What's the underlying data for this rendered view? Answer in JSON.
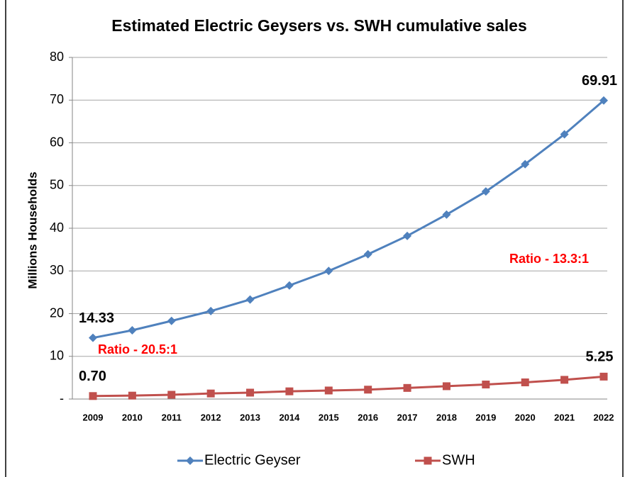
{
  "chart_data": {
    "type": "line",
    "title": "Estimated Electric Geysers vs. SWH cumulative sales",
    "y_label": "Millions Households",
    "categories": [
      "2009",
      "2010",
      "2011",
      "2012",
      "2013",
      "2014",
      "2015",
      "2016",
      "2017",
      "2018",
      "2019",
      "2020",
      "2021",
      "2022"
    ],
    "series": [
      {
        "name": "Electric Geyser",
        "color": "#4f81bd",
        "marker": "diamond",
        "values": [
          14.33,
          16.1,
          18.3,
          20.6,
          23.3,
          26.6,
          30.0,
          33.9,
          38.2,
          43.2,
          48.6,
          55.0,
          62.0,
          69.91
        ],
        "value_labels": [
          "14.33",
          null,
          null,
          null,
          null,
          null,
          null,
          null,
          null,
          null,
          null,
          null,
          null,
          "69.91"
        ]
      },
      {
        "name": "SWH",
        "color": "#c0504d",
        "marker": "square",
        "values": [
          0.7,
          0.8,
          1.0,
          1.3,
          1.5,
          1.8,
          2.0,
          2.2,
          2.6,
          3.0,
          3.4,
          3.9,
          4.5,
          5.25
        ],
        "value_labels": [
          "0.70",
          null,
          null,
          null,
          null,
          null,
          null,
          null,
          null,
          null,
          null,
          null,
          null,
          "5.25"
        ]
      }
    ],
    "annotations": [
      "Ratio - 20.5:1",
      "Ratio - 13.3:1"
    ],
    "ylim": [
      0,
      80
    ],
    "yticks": [
      {
        "value": 0,
        "label": "-"
      },
      10,
      20,
      30,
      40,
      50,
      60,
      70,
      80
    ],
    "grid": true,
    "legend": "bottom"
  }
}
